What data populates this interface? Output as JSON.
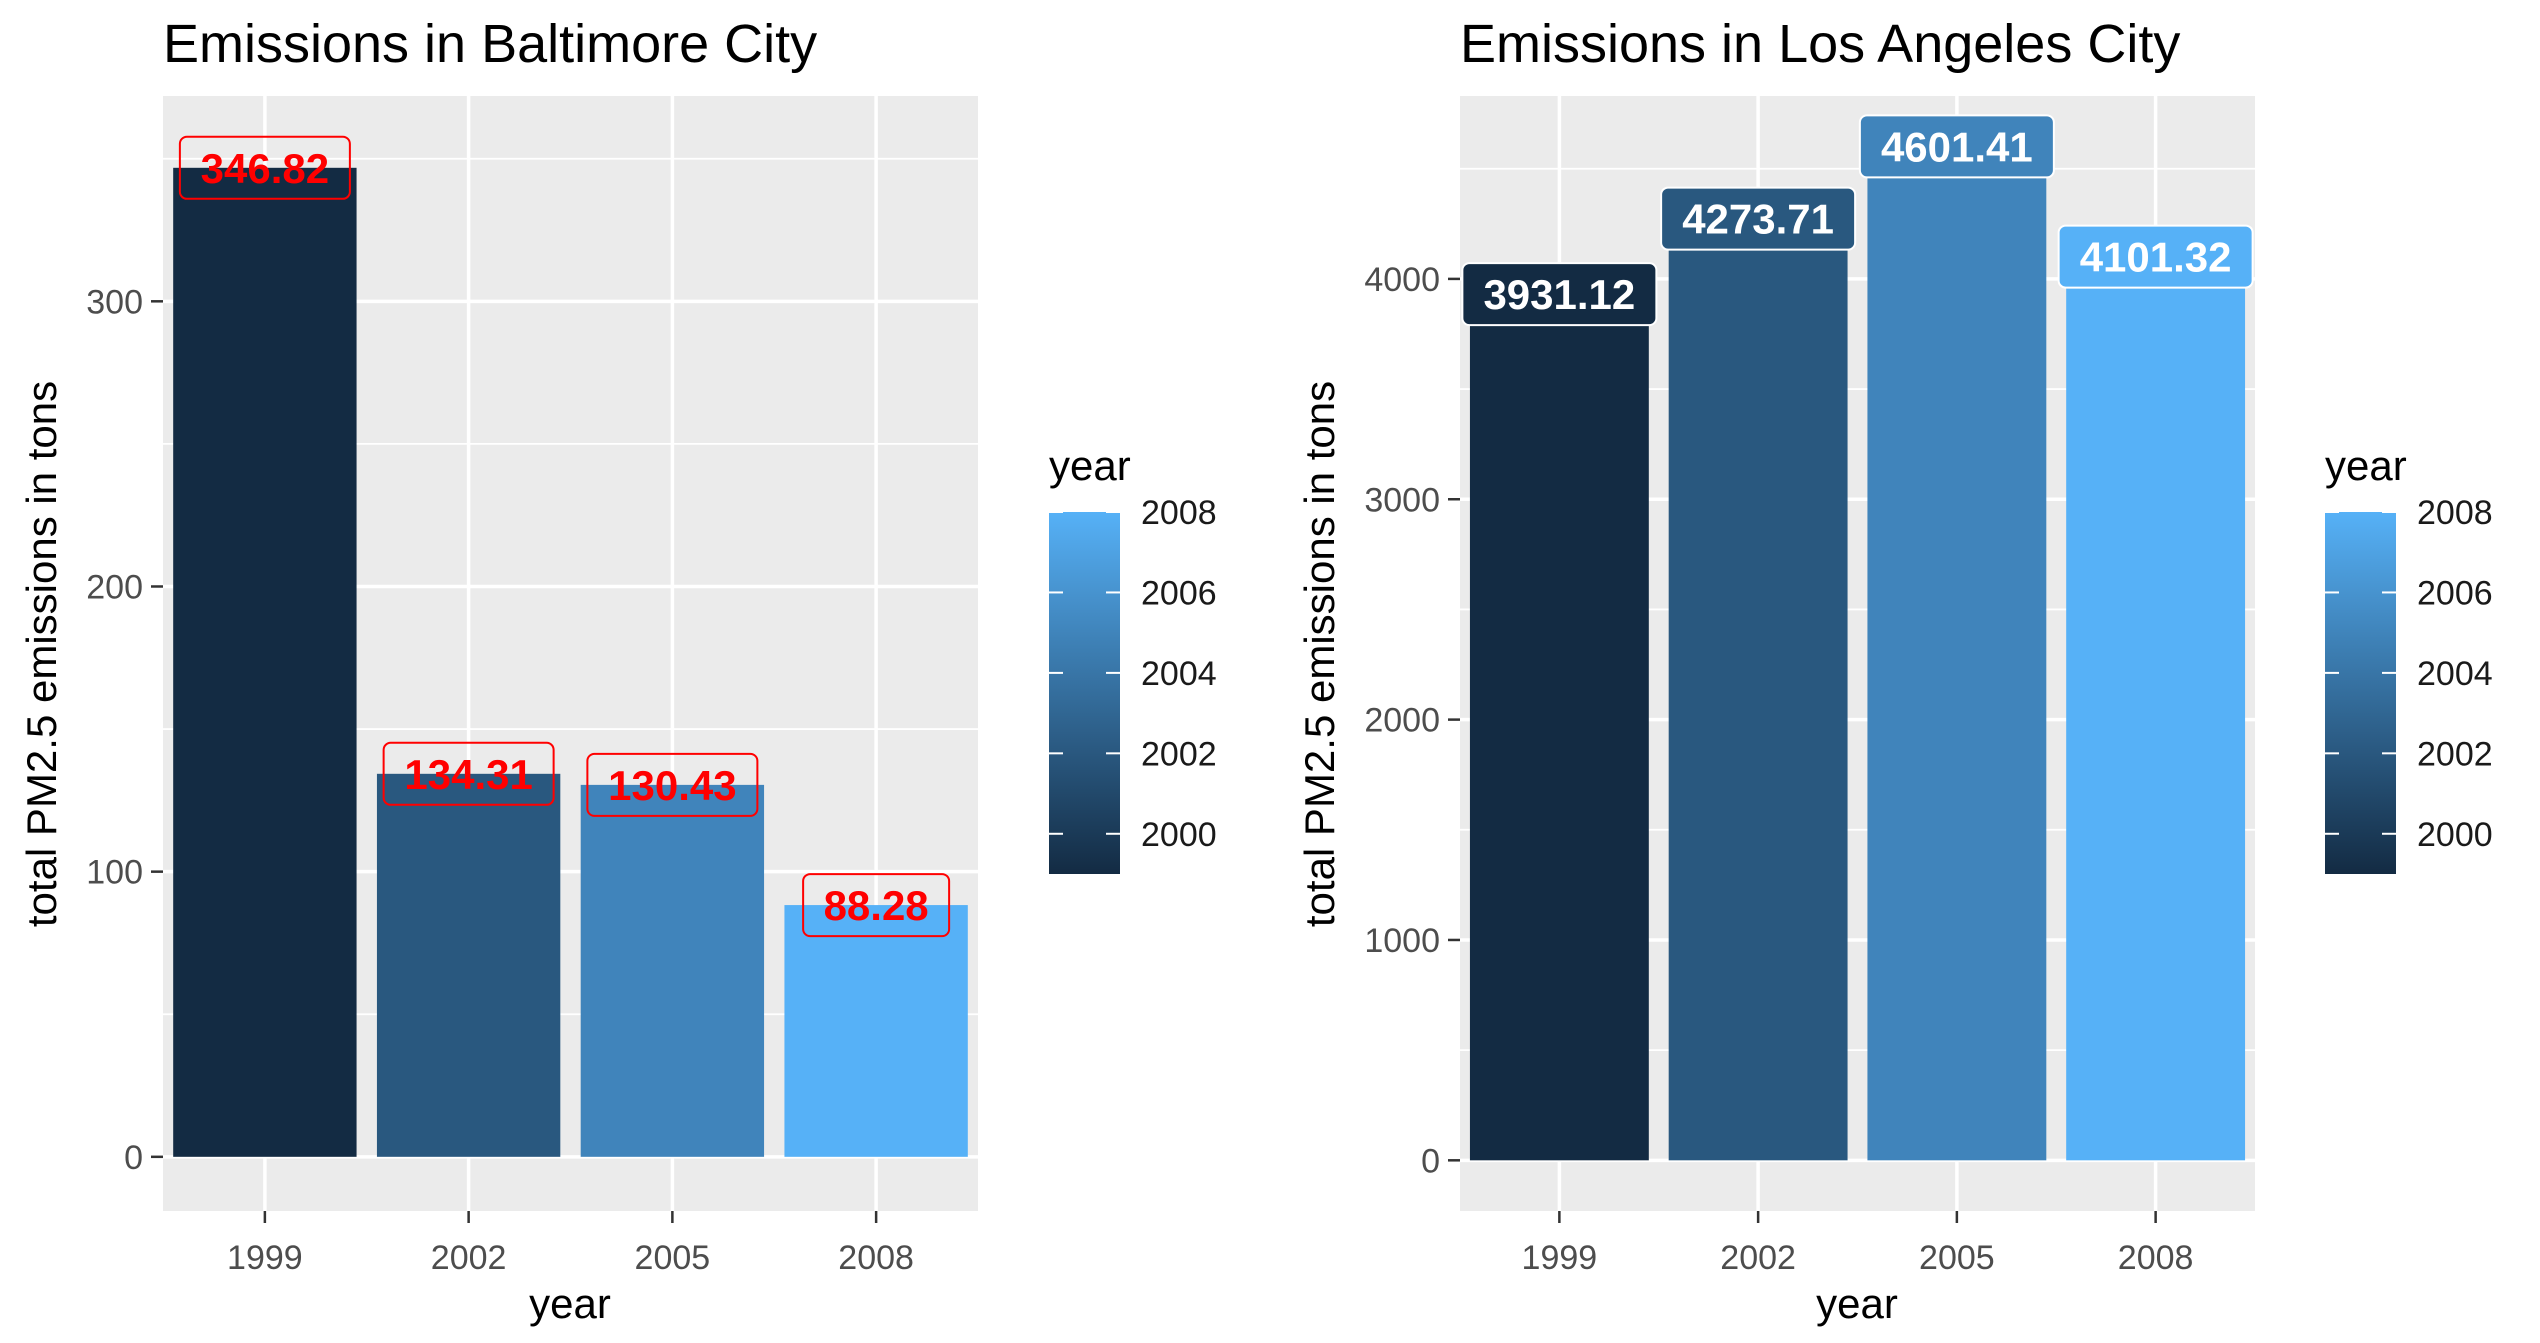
{
  "figure": {
    "legend_title": "year",
    "legend_breaks": [
      "2008",
      "2006",
      "2004",
      "2002",
      "2000"
    ],
    "legend_break_values": [
      2008,
      2006,
      2004,
      2002,
      2000
    ],
    "legend_range": [
      1999,
      2008
    ],
    "color_low": "#132B43",
    "color_high": "#56B1F7",
    "panel_background": "#EBEBEB",
    "gridline_color": "#ffffff"
  },
  "chart_data": [
    {
      "type": "bar",
      "title": "Emissions  in Baltimore City",
      "xlabel": "year",
      "ylabel": "total PM2.5 emissions in tons",
      "categories": [
        "1999",
        "2002",
        "2005",
        "2008"
      ],
      "values": [
        346.82,
        134.31,
        130.43,
        88.28
      ],
      "labels": [
        "346.82",
        "134.31",
        "130.43",
        "88.28"
      ],
      "yticks": [
        0,
        100,
        200,
        300
      ],
      "ytick_labels": [
        "0",
        "100",
        "200",
        "300"
      ],
      "ylim": [
        -19,
        372
      ],
      "label_style": "red-text-outlined",
      "label_color": "#FF0000",
      "grid": true,
      "legend_position": "right"
    },
    {
      "type": "bar",
      "title": "Emissions in Los Angeles  City",
      "xlabel": "year",
      "ylabel": "total PM2.5 emissions in tons",
      "categories": [
        "1999",
        "2002",
        "2005",
        "2008"
      ],
      "values": [
        3931.12,
        4273.71,
        4601.41,
        4101.32
      ],
      "labels": [
        "3931.12",
        "4273.71",
        "4601.41",
        "4101.32"
      ],
      "yticks": [
        0,
        1000,
        2000,
        3000,
        4000
      ],
      "ytick_labels": [
        "0",
        "1000",
        "2000",
        "3000",
        "4000"
      ],
      "ylim": [
        -230,
        4830
      ],
      "label_style": "white-text-filled",
      "label_color": "#FFFFFF",
      "grid": true,
      "legend_position": "right"
    }
  ]
}
